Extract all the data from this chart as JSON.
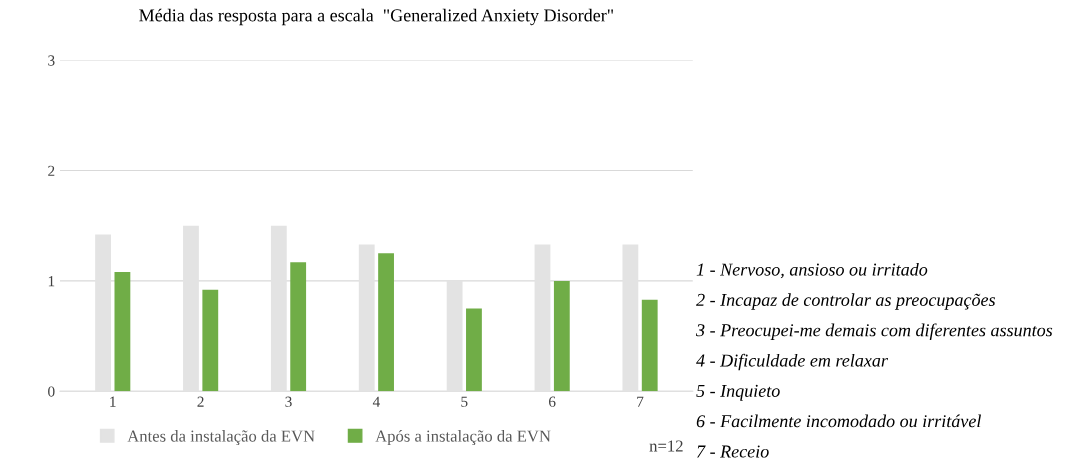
{
  "chart_data": {
    "type": "bar",
    "title": "Média das resposta para a escala  \"Generalized Anxiety Disorder\"",
    "categories": [
      "1",
      "2",
      "3",
      "4",
      "5",
      "6",
      "7"
    ],
    "series": [
      {
        "name": "Antes da instalação da EVN",
        "color": "#e3e3e3",
        "values": [
          1.42,
          1.5,
          1.5,
          1.33,
          1.0,
          1.33,
          1.33
        ]
      },
      {
        "name": "Após a instalação da EVN",
        "color": "#70ad47",
        "values": [
          1.08,
          0.92,
          1.17,
          1.25,
          0.75,
          1.0,
          0.83
        ]
      }
    ],
    "ylim": [
      0,
      3
    ],
    "yticks": [
      0,
      1,
      2,
      3
    ],
    "grid": "y",
    "legend": "bottom",
    "annotations": [
      "n=12",
      "1 - Nervoso, ansioso ou irritado",
      "2 - Incapaz de controlar as preocupações",
      "3 - Preocupei-me demais com diferentes assuntos",
      "4 - Dificuldade em relaxar",
      "5 - Inquieto",
      "6 - Facilmente incomodado ou irritável",
      "7 - Receio"
    ]
  }
}
